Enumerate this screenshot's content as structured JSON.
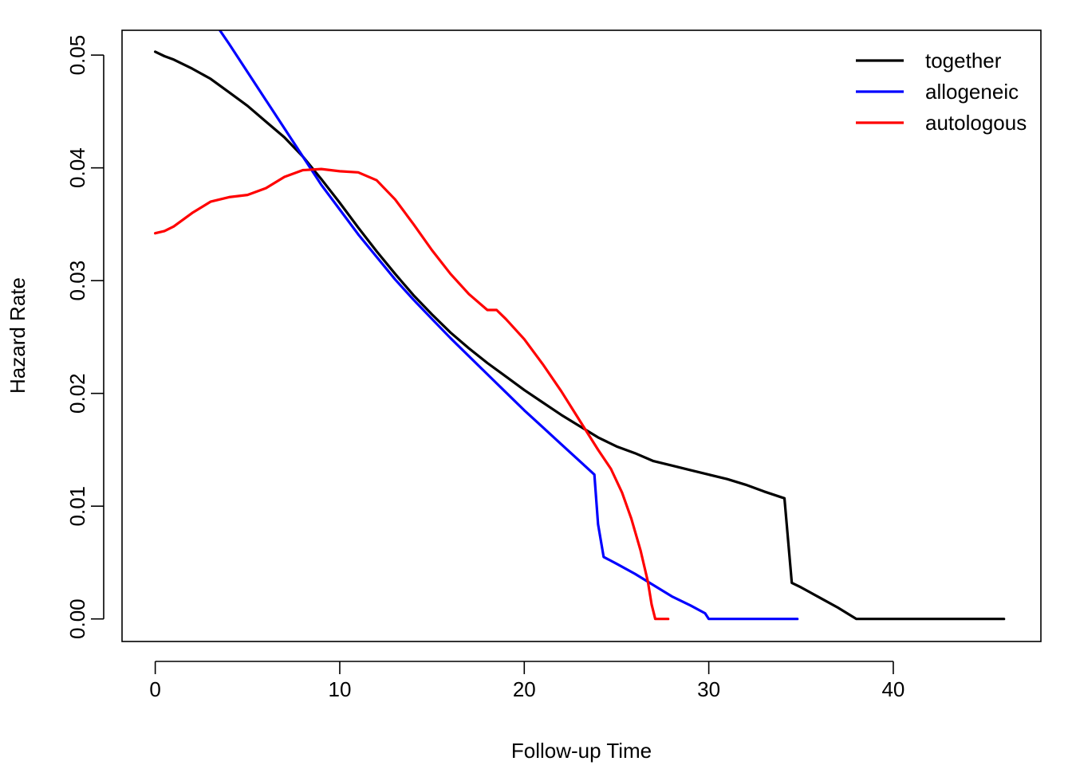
{
  "chart_data": {
    "type": "line",
    "title": "",
    "xlabel": "Follow-up Time",
    "ylabel": "Hazard Rate",
    "xlim": [
      -1.8,
      48
    ],
    "ylim": [
      -0.002,
      0.0522
    ],
    "xticks": [
      0,
      10,
      20,
      30,
      40
    ],
    "xtick_labels": [
      "0",
      "10",
      "20",
      "30",
      "40"
    ],
    "yticks": [
      0.0,
      0.01,
      0.02,
      0.03,
      0.04,
      0.05
    ],
    "ytick_labels": [
      "0.00",
      "0.01",
      "0.02",
      "0.03",
      "0.04",
      "0.05"
    ],
    "grid": false,
    "legend_position": "top-right",
    "series": [
      {
        "name": "together",
        "color": "#000000",
        "points": [
          [
            0,
            0.0503
          ],
          [
            0.5,
            0.0499
          ],
          [
            1,
            0.0496
          ],
          [
            2,
            0.0488
          ],
          [
            3,
            0.0479
          ],
          [
            4,
            0.0467
          ],
          [
            5,
            0.0455
          ],
          [
            6,
            0.0441
          ],
          [
            7,
            0.0427
          ],
          [
            8,
            0.041
          ],
          [
            9,
            0.039
          ],
          [
            10,
            0.0369
          ],
          [
            11,
            0.0347
          ],
          [
            12,
            0.0326
          ],
          [
            13,
            0.0306
          ],
          [
            14,
            0.0287
          ],
          [
            15,
            0.027
          ],
          [
            16,
            0.0254
          ],
          [
            17,
            0.024
          ],
          [
            18,
            0.0227
          ],
          [
            19,
            0.0215
          ],
          [
            20,
            0.0203
          ],
          [
            21,
            0.0192
          ],
          [
            22,
            0.0181
          ],
          [
            23,
            0.0171
          ],
          [
            24,
            0.0161
          ],
          [
            25,
            0.0153
          ],
          [
            26,
            0.0147
          ],
          [
            27,
            0.014
          ],
          [
            28,
            0.0136
          ],
          [
            29,
            0.0132
          ],
          [
            30,
            0.0128
          ],
          [
            31,
            0.0124
          ],
          [
            32,
            0.0119
          ],
          [
            33,
            0.0113
          ],
          [
            34.1,
            0.0107
          ],
          [
            34.5,
            0.0032
          ],
          [
            35,
            0.0028
          ],
          [
            36,
            0.0019
          ],
          [
            37,
            0.001
          ],
          [
            37.8,
            0.0002
          ],
          [
            38,
            0.0
          ],
          [
            46,
            0.0
          ]
        ]
      },
      {
        "name": "allogeneic",
        "color": "#0000ff",
        "points": [
          [
            3.5,
            0.0522
          ],
          [
            4,
            0.051
          ],
          [
            5,
            0.0485
          ],
          [
            6,
            0.046
          ],
          [
            7,
            0.0435
          ],
          [
            8,
            0.041
          ],
          [
            9,
            0.0385
          ],
          [
            10,
            0.0363
          ],
          [
            11,
            0.0341
          ],
          [
            12,
            0.0321
          ],
          [
            13,
            0.0301
          ],
          [
            14,
            0.0283
          ],
          [
            15,
            0.0266
          ],
          [
            16,
            0.0249
          ],
          [
            17,
            0.0233
          ],
          [
            18,
            0.0217
          ],
          [
            19,
            0.0201
          ],
          [
            20,
            0.0185
          ],
          [
            21,
            0.017
          ],
          [
            22,
            0.0155
          ],
          [
            23,
            0.014
          ],
          [
            23.8,
            0.0128
          ],
          [
            24,
            0.0084
          ],
          [
            24.3,
            0.0055
          ],
          [
            25,
            0.0049
          ],
          [
            26,
            0.004
          ],
          [
            27,
            0.003
          ],
          [
            28,
            0.002
          ],
          [
            29,
            0.0012
          ],
          [
            29.8,
            0.0005
          ],
          [
            30,
            0.0
          ],
          [
            34.8,
            0.0
          ]
        ]
      },
      {
        "name": "autologous",
        "color": "#ff0000",
        "points": [
          [
            0,
            0.0342
          ],
          [
            0.5,
            0.0344
          ],
          [
            1,
            0.0348
          ],
          [
            2,
            0.036
          ],
          [
            3,
            0.037
          ],
          [
            4,
            0.0374
          ],
          [
            5,
            0.0376
          ],
          [
            6,
            0.0382
          ],
          [
            7,
            0.0392
          ],
          [
            8,
            0.0398
          ],
          [
            9,
            0.0399
          ],
          [
            10,
            0.0397
          ],
          [
            11,
            0.0396
          ],
          [
            12,
            0.0389
          ],
          [
            13,
            0.0372
          ],
          [
            14,
            0.035
          ],
          [
            15,
            0.0327
          ],
          [
            16,
            0.0306
          ],
          [
            17,
            0.0288
          ],
          [
            18,
            0.0274
          ],
          [
            18.5,
            0.0274
          ],
          [
            19,
            0.0266
          ],
          [
            20,
            0.0248
          ],
          [
            21,
            0.0226
          ],
          [
            22,
            0.0202
          ],
          [
            23,
            0.0176
          ],
          [
            24,
            0.015
          ],
          [
            24.7,
            0.0133
          ],
          [
            25.3,
            0.0112
          ],
          [
            25.8,
            0.0089
          ],
          [
            26.3,
            0.0061
          ],
          [
            26.7,
            0.0033
          ],
          [
            26.9,
            0.0013
          ],
          [
            27.1,
            0.0
          ],
          [
            27.8,
            0.0
          ]
        ]
      }
    ]
  }
}
